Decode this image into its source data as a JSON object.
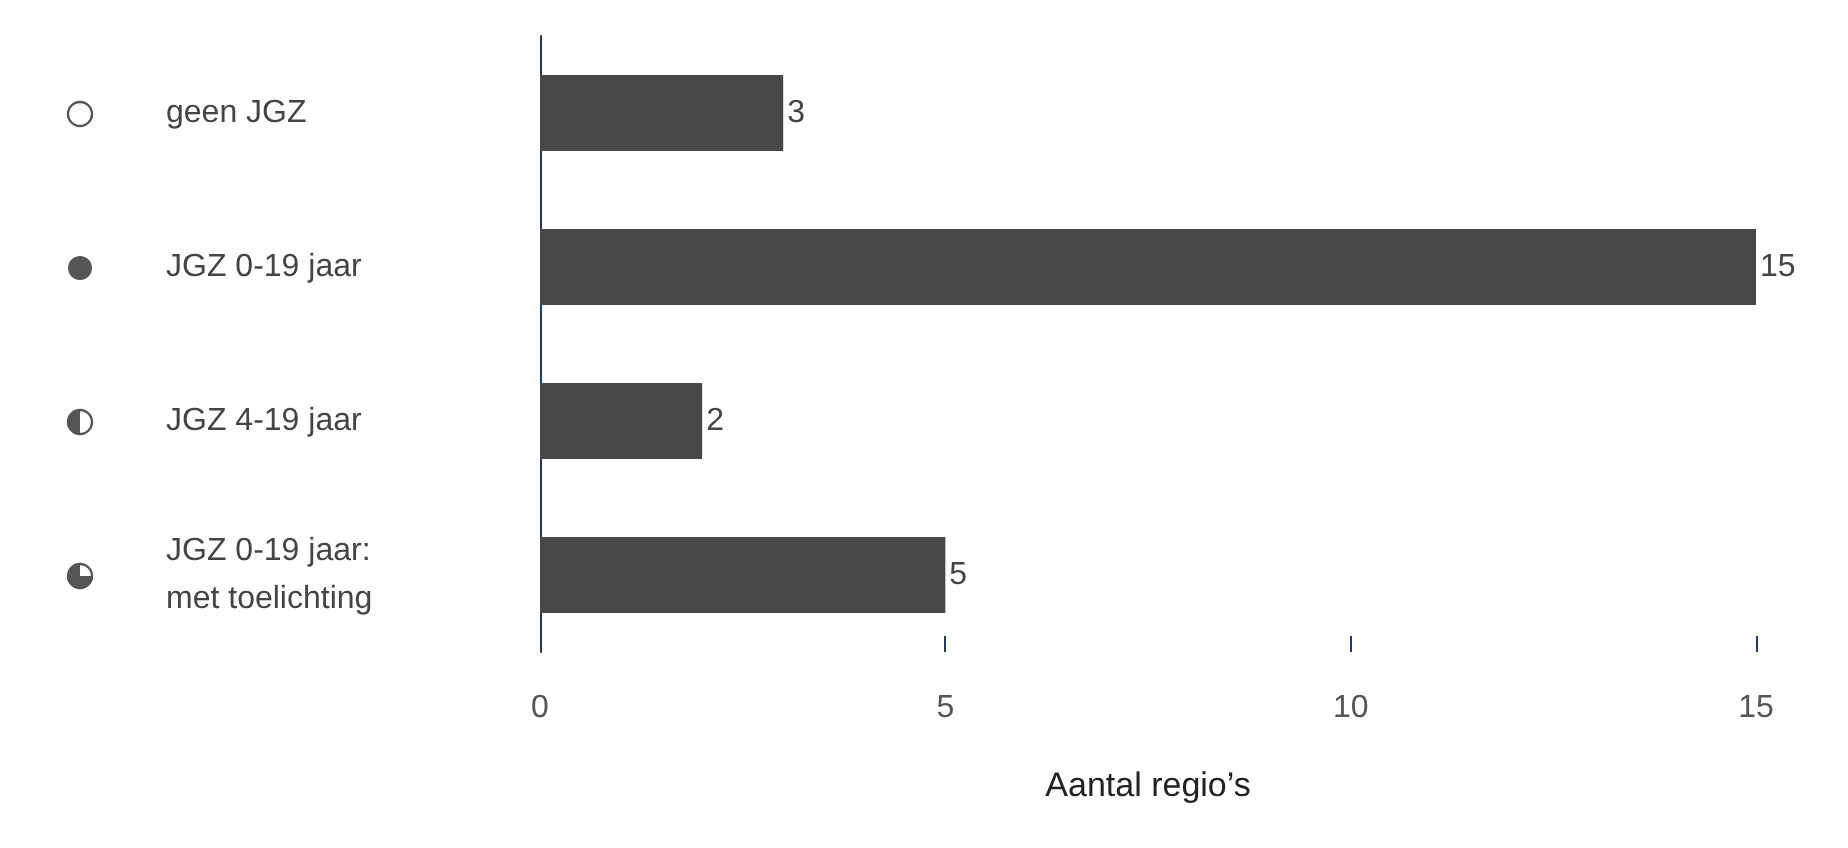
{
  "chart_data": {
    "type": "bar",
    "orientation": "horizontal",
    "xlabel": "Aantal regio’s",
    "categories": [
      "geen JGZ",
      "JGZ 0-19 jaar",
      "JGZ 4-19 jaar",
      "JGZ 0-19 jaar: met toelichting"
    ],
    "values": [
      3,
      15,
      2,
      5
    ],
    "color": "#474747",
    "data_labels": true,
    "xlim": [
      0,
      15
    ],
    "xticks": [
      0,
      5,
      10,
      15
    ],
    "grid": false
  }
}
